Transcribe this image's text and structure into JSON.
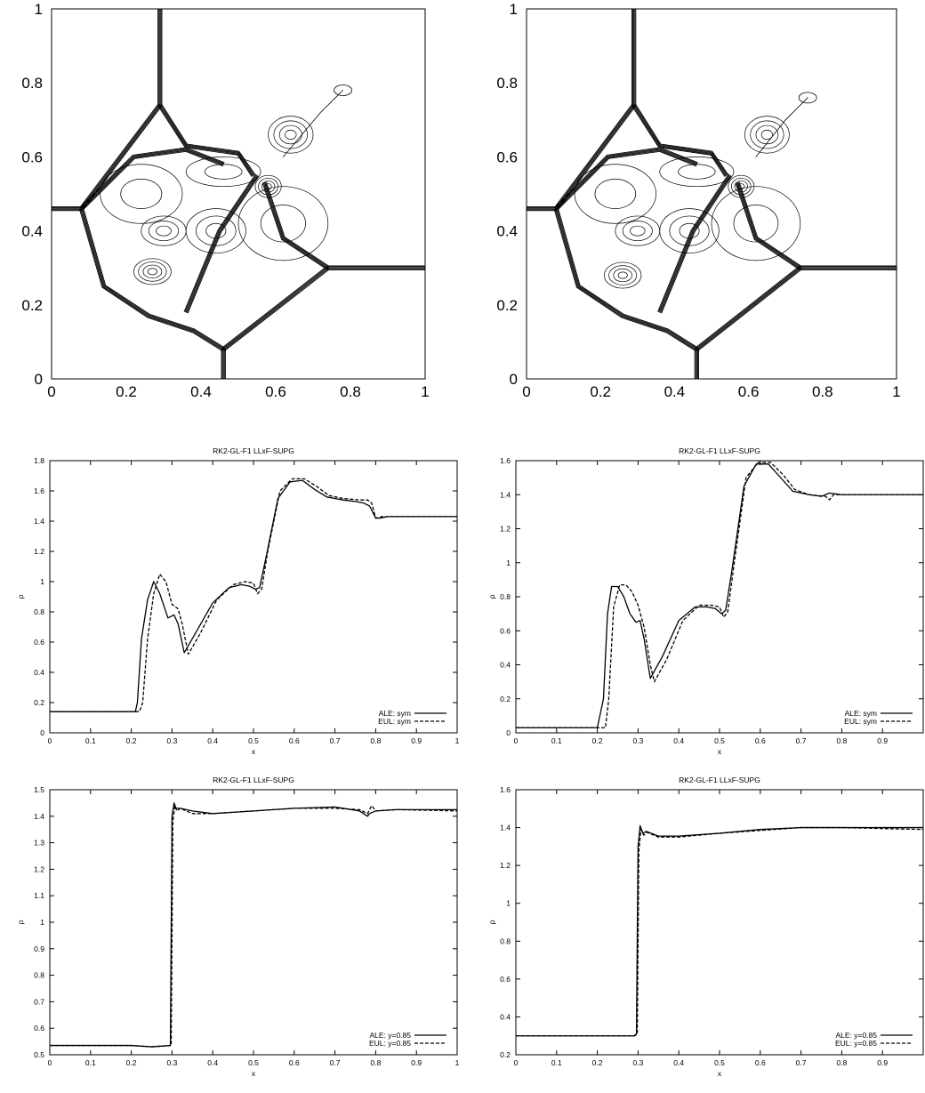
{
  "chart_data": [
    {
      "type": "contour",
      "xlim": [
        0,
        1
      ],
      "ylim": [
        0,
        1
      ],
      "xticks": [
        "0",
        "0.2",
        "0.4",
        "0.6",
        "0.8",
        "1"
      ],
      "yticks": [
        "0",
        "0.2",
        "0.4",
        "0.6",
        "0.8",
        "1"
      ],
      "shocks": [
        [
          [
            0.29,
            1.0
          ],
          [
            0.29,
            0.74
          ]
        ],
        [
          [
            0.29,
            0.74
          ],
          [
            0.08,
            0.46
          ]
        ],
        [
          [
            0.0,
            0.46
          ],
          [
            0.08,
            0.46
          ]
        ],
        [
          [
            0.08,
            0.46
          ],
          [
            0.14,
            0.25
          ],
          [
            0.26,
            0.17
          ],
          [
            0.38,
            0.13
          ],
          [
            0.46,
            0.08
          ]
        ],
        [
          [
            0.46,
            0.08
          ],
          [
            0.46,
            0.0
          ]
        ],
        [
          [
            0.46,
            0.08
          ],
          [
            0.74,
            0.3
          ]
        ],
        [
          [
            0.74,
            0.3
          ],
          [
            1.0,
            0.3
          ]
        ],
        [
          [
            0.74,
            0.3
          ],
          [
            0.62,
            0.38
          ],
          [
            0.57,
            0.53
          ]
        ],
        [
          [
            0.29,
            0.74
          ],
          [
            0.36,
            0.63
          ],
          [
            0.5,
            0.61
          ],
          [
            0.54,
            0.55
          ]
        ],
        [
          [
            0.08,
            0.46
          ],
          [
            0.22,
            0.6
          ],
          [
            0.36,
            0.62
          ],
          [
            0.46,
            0.58
          ]
        ],
        [
          [
            0.36,
            0.18
          ],
          [
            0.45,
            0.4
          ],
          [
            0.55,
            0.55
          ]
        ]
      ],
      "closed_contours": [
        {
          "cx": 0.58,
          "cy": 0.52,
          "rx": 0.035,
          "ry": 0.03,
          "n": 4
        },
        {
          "cx": 0.64,
          "cy": 0.66,
          "rx": 0.06,
          "ry": 0.05,
          "n": 4
        },
        {
          "cx": 0.27,
          "cy": 0.29,
          "rx": 0.05,
          "ry": 0.035,
          "n": 4
        },
        {
          "cx": 0.3,
          "cy": 0.4,
          "rx": 0.06,
          "ry": 0.04,
          "n": 3
        },
        {
          "cx": 0.44,
          "cy": 0.4,
          "rx": 0.08,
          "ry": 0.06,
          "n": 3
        },
        {
          "cx": 0.46,
          "cy": 0.56,
          "rx": 0.1,
          "ry": 0.04,
          "n": 2
        },
        {
          "cx": 0.24,
          "cy": 0.5,
          "rx": 0.11,
          "ry": 0.08,
          "n": 2
        },
        {
          "cx": 0.62,
          "cy": 0.42,
          "rx": 0.12,
          "ry": 0.1,
          "n": 2
        }
      ],
      "jet": [
        [
          0.62,
          0.6
        ],
        [
          0.72,
          0.72
        ],
        [
          0.78,
          0.78
        ]
      ]
    },
    {
      "type": "contour",
      "xlim": [
        0,
        1
      ],
      "ylim": [
        0,
        1
      ],
      "xticks": [
        "0",
        "0.2",
        "0.4",
        "0.6",
        "0.8",
        "1"
      ],
      "yticks": [
        "0",
        "0.2",
        "0.4",
        "0.6",
        "0.8",
        "1"
      ],
      "shocks": [
        [
          [
            0.29,
            1.0
          ],
          [
            0.29,
            0.74
          ]
        ],
        [
          [
            0.29,
            0.74
          ],
          [
            0.08,
            0.46
          ]
        ],
        [
          [
            0.0,
            0.46
          ],
          [
            0.08,
            0.46
          ]
        ],
        [
          [
            0.08,
            0.46
          ],
          [
            0.14,
            0.25
          ],
          [
            0.26,
            0.17
          ],
          [
            0.38,
            0.13
          ],
          [
            0.46,
            0.08
          ]
        ],
        [
          [
            0.46,
            0.08
          ],
          [
            0.46,
            0.0
          ]
        ],
        [
          [
            0.46,
            0.08
          ],
          [
            0.74,
            0.3
          ]
        ],
        [
          [
            0.74,
            0.3
          ],
          [
            1.0,
            0.3
          ]
        ],
        [
          [
            0.74,
            0.3
          ],
          [
            0.62,
            0.38
          ],
          [
            0.57,
            0.53
          ]
        ],
        [
          [
            0.29,
            0.74
          ],
          [
            0.36,
            0.63
          ],
          [
            0.5,
            0.61
          ],
          [
            0.54,
            0.55
          ]
        ],
        [
          [
            0.08,
            0.46
          ],
          [
            0.22,
            0.6
          ],
          [
            0.36,
            0.62
          ],
          [
            0.46,
            0.58
          ]
        ],
        [
          [
            0.36,
            0.18
          ],
          [
            0.45,
            0.4
          ],
          [
            0.55,
            0.55
          ]
        ]
      ],
      "closed_contours": [
        {
          "cx": 0.58,
          "cy": 0.52,
          "rx": 0.035,
          "ry": 0.03,
          "n": 4
        },
        {
          "cx": 0.65,
          "cy": 0.66,
          "rx": 0.06,
          "ry": 0.05,
          "n": 4
        },
        {
          "cx": 0.26,
          "cy": 0.28,
          "rx": 0.05,
          "ry": 0.035,
          "n": 4
        },
        {
          "cx": 0.3,
          "cy": 0.4,
          "rx": 0.06,
          "ry": 0.04,
          "n": 3
        },
        {
          "cx": 0.44,
          "cy": 0.4,
          "rx": 0.08,
          "ry": 0.06,
          "n": 3
        },
        {
          "cx": 0.46,
          "cy": 0.56,
          "rx": 0.1,
          "ry": 0.04,
          "n": 2
        },
        {
          "cx": 0.24,
          "cy": 0.5,
          "rx": 0.11,
          "ry": 0.08,
          "n": 2
        },
        {
          "cx": 0.62,
          "cy": 0.42,
          "rx": 0.12,
          "ry": 0.1,
          "n": 2
        }
      ],
      "jet": [
        [
          0.62,
          0.6
        ],
        [
          0.7,
          0.7
        ],
        [
          0.76,
          0.76
        ]
      ]
    },
    {
      "type": "line",
      "title": "RK2-GL-F1 LLxF-SUPG",
      "xlabel": "x",
      "ylabel": "ρ",
      "xlim": [
        0,
        1
      ],
      "ylim": [
        0,
        1.8
      ],
      "xticks": [
        "0",
        "0.1",
        "0.2",
        "0.3",
        "0.4",
        "0.5",
        "0.6",
        "0.7",
        "0.8",
        "0.9",
        "1"
      ],
      "yticks": [
        "0",
        "0.2",
        "0.4",
        "0.6",
        "0.8",
        "1",
        "1.2",
        "1.4",
        "1.6",
        "1.8"
      ],
      "legend_position": "bottom-right",
      "series": [
        {
          "name": "ALE: sym",
          "style": "solid",
          "x": [
            0,
            0.21,
            0.215,
            0.225,
            0.24,
            0.255,
            0.27,
            0.29,
            0.305,
            0.315,
            0.33,
            0.36,
            0.4,
            0.44,
            0.47,
            0.49,
            0.505,
            0.515,
            0.53,
            0.56,
            0.59,
            0.62,
            0.65,
            0.68,
            0.72,
            0.75,
            0.77,
            0.785,
            0.8,
            0.81,
            0.83,
            1
          ],
          "y": [
            0.14,
            0.14,
            0.2,
            0.62,
            0.88,
            1.0,
            0.92,
            0.76,
            0.78,
            0.72,
            0.53,
            0.67,
            0.86,
            0.96,
            0.98,
            0.97,
            0.95,
            0.96,
            1.15,
            1.55,
            1.66,
            1.67,
            1.61,
            1.56,
            1.54,
            1.53,
            1.52,
            1.5,
            1.42,
            1.42,
            1.43,
            1.43
          ]
        },
        {
          "name": "EUL: sym",
          "style": "dashed",
          "x": [
            0,
            0.22,
            0.228,
            0.24,
            0.255,
            0.27,
            0.285,
            0.3,
            0.315,
            0.325,
            0.34,
            0.37,
            0.41,
            0.45,
            0.48,
            0.5,
            0.51,
            0.52,
            0.535,
            0.565,
            0.595,
            0.625,
            0.655,
            0.685,
            0.72,
            0.76,
            0.78,
            0.79,
            0.8,
            0.815,
            0.83,
            1
          ],
          "y": [
            0.14,
            0.14,
            0.2,
            0.62,
            0.92,
            1.05,
            1.0,
            0.85,
            0.82,
            0.72,
            0.52,
            0.66,
            0.88,
            0.98,
            1.0,
            0.99,
            0.92,
            0.95,
            1.2,
            1.6,
            1.68,
            1.68,
            1.63,
            1.57,
            1.55,
            1.54,
            1.54,
            1.52,
            1.42,
            1.43,
            1.43,
            1.43
          ]
        }
      ]
    },
    {
      "type": "line",
      "title": "RK2-GL-F1 LLxF-SUPG",
      "xlabel": "x",
      "ylabel": "ρ",
      "xlim": [
        0,
        1
      ],
      "ylim": [
        0,
        1.6
      ],
      "xticks": [
        "0",
        "0.1",
        "0.2",
        "0.3",
        "0.4",
        "0.5",
        "0.6",
        "0.7",
        "0.8",
        "0.9"
      ],
      "yticks": [
        "0",
        "0.2",
        "0.4",
        "0.6",
        "0.8",
        "1",
        "1.2",
        "1.4",
        "1.6"
      ],
      "legend_position": "bottom-right",
      "series": [
        {
          "name": "ALE: sym",
          "style": "solid",
          "x": [
            0,
            0.2,
            0.215,
            0.225,
            0.235,
            0.25,
            0.265,
            0.28,
            0.295,
            0.305,
            0.315,
            0.33,
            0.36,
            0.4,
            0.44,
            0.47,
            0.49,
            0.505,
            0.515,
            0.53,
            0.56,
            0.59,
            0.62,
            0.65,
            0.68,
            0.72,
            0.75,
            0.76,
            0.77,
            0.8,
            1
          ],
          "y": [
            0.03,
            0.03,
            0.2,
            0.7,
            0.86,
            0.86,
            0.8,
            0.7,
            0.65,
            0.66,
            0.55,
            0.32,
            0.45,
            0.66,
            0.74,
            0.74,
            0.73,
            0.7,
            0.72,
            0.95,
            1.45,
            1.58,
            1.58,
            1.5,
            1.42,
            1.4,
            1.39,
            1.4,
            1.41,
            1.4,
            1.4
          ]
        },
        {
          "name": "EUL: sym",
          "style": "dashed",
          "x": [
            0,
            0.22,
            0.228,
            0.24,
            0.255,
            0.27,
            0.285,
            0.3,
            0.315,
            0.33,
            0.34,
            0.37,
            0.41,
            0.45,
            0.48,
            0.5,
            0.51,
            0.52,
            0.535,
            0.565,
            0.595,
            0.625,
            0.655,
            0.685,
            0.72,
            0.76,
            0.77,
            0.78,
            0.8,
            1
          ],
          "y": [
            0.03,
            0.03,
            0.2,
            0.74,
            0.87,
            0.87,
            0.83,
            0.75,
            0.62,
            0.4,
            0.3,
            0.43,
            0.66,
            0.75,
            0.75,
            0.74,
            0.68,
            0.71,
            0.98,
            1.5,
            1.59,
            1.59,
            1.52,
            1.43,
            1.4,
            1.39,
            1.37,
            1.4,
            1.4,
            1.4
          ]
        }
      ]
    },
    {
      "type": "line",
      "title": "RK2-GL-F1 LLxF-SUPG",
      "xlabel": "x",
      "ylabel": "ρ",
      "xlim": [
        0,
        1
      ],
      "ylim": [
        0.5,
        1.5
      ],
      "xticks": [
        "0",
        "0.1",
        "0.2",
        "0.3",
        "0.4",
        "0.5",
        "0.6",
        "0.7",
        "0.8",
        "0.9",
        "1"
      ],
      "yticks": [
        "0.5",
        "0.6",
        "0.7",
        "0.8",
        "0.9",
        "1",
        "1.1",
        "1.2",
        "1.3",
        "1.4",
        "1.5"
      ],
      "legend_position": "bottom-right",
      "series": [
        {
          "name": "ALE: y=0.85",
          "style": "solid",
          "x": [
            0,
            0.2,
            0.25,
            0.296,
            0.3,
            0.305,
            0.31,
            0.32,
            0.35,
            0.4,
            0.5,
            0.6,
            0.7,
            0.76,
            0.78,
            0.785,
            0.8,
            0.85,
            1
          ],
          "y": [
            0.535,
            0.535,
            0.53,
            0.535,
            1.4,
            1.45,
            1.43,
            1.43,
            1.42,
            1.41,
            1.42,
            1.43,
            1.435,
            1.42,
            1.4,
            1.41,
            1.42,
            1.425,
            1.425
          ]
        },
        {
          "name": "EUL: y=0.85",
          "style": "dashed",
          "x": [
            0,
            0.2,
            0.25,
            0.298,
            0.302,
            0.307,
            0.312,
            0.32,
            0.35,
            0.4,
            0.5,
            0.6,
            0.7,
            0.76,
            0.78,
            0.79,
            0.8,
            0.85,
            1
          ],
          "y": [
            0.535,
            0.535,
            0.53,
            0.535,
            1.38,
            1.44,
            1.42,
            1.43,
            1.41,
            1.41,
            1.42,
            1.43,
            1.43,
            1.425,
            1.41,
            1.44,
            1.42,
            1.425,
            1.42
          ]
        }
      ]
    },
    {
      "type": "line",
      "title": "RK2-GL-F1 LLxF-SUPG",
      "xlabel": "x",
      "ylabel": "ρ",
      "xlim": [
        0,
        1
      ],
      "ylim": [
        0.2,
        1.6
      ],
      "xticks": [
        "0",
        "0.1",
        "0.2",
        "0.3",
        "0.4",
        "0.5",
        "0.6",
        "0.7",
        "0.8",
        "0.9"
      ],
      "yticks": [
        "0.2",
        "0.4",
        "0.6",
        "0.8",
        "1",
        "1.2",
        "1.4",
        "1.6"
      ],
      "legend_position": "bottom-right",
      "series": [
        {
          "name": "ALE: y=0.85",
          "style": "solid",
          "x": [
            0,
            0.2,
            0.29,
            0.296,
            0.3,
            0.305,
            0.312,
            0.32,
            0.35,
            0.4,
            0.5,
            0.6,
            0.7,
            0.8,
            0.9,
            1
          ],
          "y": [
            0.3,
            0.3,
            0.3,
            0.31,
            1.3,
            1.41,
            1.37,
            1.38,
            1.355,
            1.355,
            1.37,
            1.39,
            1.4,
            1.4,
            1.4,
            1.4
          ]
        },
        {
          "name": "EUL: y=0.85",
          "style": "dashed",
          "x": [
            0,
            0.2,
            0.292,
            0.298,
            0.302,
            0.307,
            0.314,
            0.322,
            0.35,
            0.4,
            0.5,
            0.6,
            0.7,
            0.8,
            0.9,
            1
          ],
          "y": [
            0.3,
            0.3,
            0.3,
            0.31,
            1.28,
            1.39,
            1.36,
            1.375,
            1.35,
            1.35,
            1.37,
            1.385,
            1.4,
            1.4,
            1.395,
            1.39
          ]
        }
      ]
    }
  ]
}
